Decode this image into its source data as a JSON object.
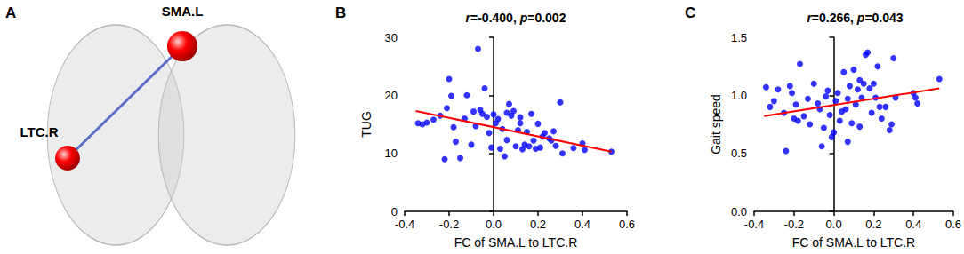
{
  "chart_data": [
    {
      "type": "diagram",
      "panel": "A",
      "nodes": [
        {
          "label": "SMA.L",
          "color": "#ff0000"
        },
        {
          "label": "LTC.R",
          "color": "#ff0000"
        }
      ],
      "edges": [
        [
          "SMA.L",
          "LTC.R"
        ]
      ],
      "color": "#3b4cc0"
    },
    {
      "type": "scatter",
      "panel": "B",
      "annotation": "r=-0.400, p=0.002",
      "x_label": "FC of SMA.L to LTC.R",
      "y_label": "TUG",
      "color": "#0000ff",
      "grid": false,
      "x": [
        -0.34,
        -0.32,
        -0.3,
        -0.27,
        -0.24,
        -0.22,
        -0.21,
        -0.2,
        -0.18,
        -0.17,
        -0.15,
        -0.13,
        -0.12,
        -0.1,
        -0.08,
        -0.07,
        -0.06,
        -0.05,
        -0.04,
        -0.03,
        -0.02,
        -0.01,
        0.0,
        0.01,
        0.02,
        0.03,
        0.04,
        0.05,
        0.06,
        0.07,
        0.08,
        0.09,
        0.1,
        0.11,
        0.12,
        0.13,
        0.14,
        0.15,
        0.16,
        0.17,
        0.18,
        0.19,
        0.2,
        0.21,
        0.23,
        0.25,
        0.26,
        0.27,
        0.28,
        0.3,
        0.31,
        0.4,
        0.41,
        0.53,
        0.36,
        0.06,
        -0.09,
        0.22,
        -0.19,
        0.12
      ],
      "values": [
        15.2,
        15.0,
        15.3,
        15.8,
        16.5,
        9.0,
        17.8,
        22.8,
        14.5,
        12.0,
        9.2,
        16.0,
        20.0,
        11.5,
        14.7,
        28.0,
        17.5,
        16.8,
        21.2,
        16.3,
        13.5,
        11.0,
        16.7,
        15.2,
        15.9,
        10.8,
        14.2,
        9.5,
        12.3,
        18.5,
        16.5,
        17.3,
        11.2,
        14.0,
        15.2,
        10.7,
        11.5,
        13.7,
        11.2,
        16.8,
        12.2,
        10.8,
        15.1,
        11.0,
        13.5,
        12.6,
        12.2,
        13.8,
        11.3,
        18.8,
        10.0,
        11.7,
        10.6,
        10.3,
        10.9,
        17.0,
        17.2,
        12.9,
        19.9,
        16.2
      ],
      "fit": {
        "x": [
          -0.35,
          0.53
        ],
        "y": [
          17.3,
          10.3
        ],
        "color": "#ff0000"
      },
      "xlim": [
        -0.4,
        0.6
      ],
      "xticks": [
        -0.4,
        -0.2,
        {
          "value": 0,
          "label": "0.0"
        },
        0.2,
        0.4,
        0.6
      ],
      "ylim": [
        0,
        30
      ],
      "yticks": [
        0,
        10,
        20,
        30
      ]
    },
    {
      "type": "scatter",
      "panel": "C",
      "annotation": "r=0.266, p=0.043",
      "x_label": "FC of SMA.L to LTC.R",
      "y_label": "Gait speed",
      "color": "#0000ff",
      "grid": false,
      "x": [
        -0.34,
        -0.32,
        -0.3,
        -0.28,
        -0.25,
        -0.24,
        -0.22,
        -0.21,
        -0.2,
        -0.18,
        -0.17,
        -0.15,
        -0.13,
        -0.12,
        -0.1,
        -0.08,
        -0.07,
        -0.06,
        -0.05,
        -0.04,
        -0.02,
        -0.01,
        0.0,
        0.01,
        0.02,
        0.03,
        0.04,
        0.05,
        0.06,
        0.07,
        0.08,
        0.09,
        0.1,
        0.11,
        0.12,
        0.13,
        0.14,
        0.15,
        0.16,
        0.17,
        0.18,
        0.19,
        0.2,
        0.21,
        0.22,
        0.23,
        0.24,
        0.26,
        0.28,
        0.29,
        0.3,
        0.31,
        0.4,
        0.41,
        0.42,
        0.53,
        -0.03,
        0.07,
        -0.19,
        0.13
      ],
      "values": [
        1.07,
        0.9,
        0.95,
        1.05,
        0.85,
        0.52,
        1.08,
        1.02,
        0.8,
        0.78,
        1.27,
        0.82,
        0.97,
        0.75,
        1.1,
        0.93,
        0.88,
        0.56,
        0.72,
        0.99,
        0.83,
        0.64,
        0.68,
        0.95,
        1.02,
        0.78,
        0.86,
        1.2,
        0.88,
        0.97,
        1.08,
        0.76,
        1.22,
        0.92,
        1.05,
        1.13,
        0.98,
        1.1,
        1.35,
        1.37,
        1.06,
        0.85,
        1.1,
        0.98,
        1.25,
        0.9,
        0.8,
        0.9,
        0.7,
        0.75,
        1.32,
        0.98,
        1.02,
        0.98,
        0.93,
        1.14,
        1.04,
        0.6,
        0.92,
        0.73
      ],
      "fit": {
        "x": [
          -0.35,
          0.53
        ],
        "y": [
          0.82,
          1.06
        ],
        "color": "#ff0000"
      },
      "xlim": [
        -0.4,
        0.6
      ],
      "xticks": [
        -0.4,
        -0.2,
        {
          "value": 0,
          "label": "0.0"
        },
        0.2,
        0.4,
        0.6
      ],
      "ylim": [
        0,
        1.5
      ],
      "yticks": [
        {
          "value": 0,
          "label": "0.0"
        },
        0.5,
        {
          "value": 1,
          "label": "1.0"
        },
        1.5
      ]
    }
  ]
}
